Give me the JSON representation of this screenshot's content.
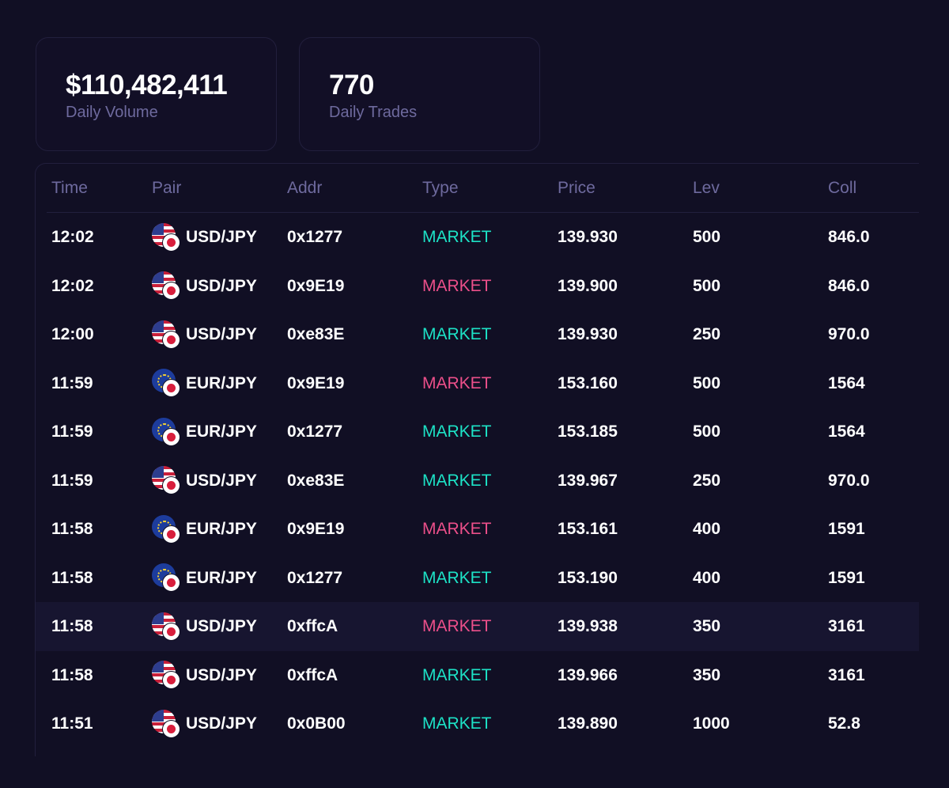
{
  "stats": {
    "volume": {
      "value": "$110,482,411",
      "label": "Daily Volume"
    },
    "trades": {
      "value": "770",
      "label": "Daily Trades"
    }
  },
  "colors": {
    "background": "#110f24",
    "buy": "#1de2c6",
    "sell": "#ec4f8a",
    "muted": "#6e6a9e"
  },
  "table": {
    "columns": [
      "Time",
      "Pair",
      "Addr",
      "Type",
      "Price",
      "Lev",
      "Coll"
    ],
    "rows": [
      {
        "time": "12:02",
        "pair": "USD/JPY",
        "base_flag": "us-flag-icon",
        "addr": "0x1277",
        "type": "MARKET",
        "side": "buy",
        "price": "139.930",
        "lev": "500",
        "coll": "846.0"
      },
      {
        "time": "12:02",
        "pair": "USD/JPY",
        "base_flag": "us-flag-icon",
        "addr": "0x9E19",
        "type": "MARKET",
        "side": "sell",
        "price": "139.900",
        "lev": "500",
        "coll": "846.0"
      },
      {
        "time": "12:00",
        "pair": "USD/JPY",
        "base_flag": "us-flag-icon",
        "addr": "0xe83E",
        "type": "MARKET",
        "side": "buy",
        "price": "139.930",
        "lev": "250",
        "coll": "970.0"
      },
      {
        "time": "11:59",
        "pair": "EUR/JPY",
        "base_flag": "eu-flag-icon",
        "addr": "0x9E19",
        "type": "MARKET",
        "side": "sell",
        "price": "153.160",
        "lev": "500",
        "coll": "1564"
      },
      {
        "time": "11:59",
        "pair": "EUR/JPY",
        "base_flag": "eu-flag-icon",
        "addr": "0x1277",
        "type": "MARKET",
        "side": "buy",
        "price": "153.185",
        "lev": "500",
        "coll": "1564"
      },
      {
        "time": "11:59",
        "pair": "USD/JPY",
        "base_flag": "us-flag-icon",
        "addr": "0xe83E",
        "type": "MARKET",
        "side": "buy",
        "price": "139.967",
        "lev": "250",
        "coll": "970.0"
      },
      {
        "time": "11:58",
        "pair": "EUR/JPY",
        "base_flag": "eu-flag-icon",
        "addr": "0x9E19",
        "type": "MARKET",
        "side": "sell",
        "price": "153.161",
        "lev": "400",
        "coll": "1591"
      },
      {
        "time": "11:58",
        "pair": "EUR/JPY",
        "base_flag": "eu-flag-icon",
        "addr": "0x1277",
        "type": "MARKET",
        "side": "buy",
        "price": "153.190",
        "lev": "400",
        "coll": "1591"
      },
      {
        "time": "11:58",
        "pair": "USD/JPY",
        "base_flag": "us-flag-icon",
        "addr": "0xffcA",
        "type": "MARKET",
        "side": "sell",
        "price": "139.938",
        "lev": "350",
        "coll": "3161",
        "highlighted": true
      },
      {
        "time": "11:58",
        "pair": "USD/JPY",
        "base_flag": "us-flag-icon",
        "addr": "0xffcA",
        "type": "MARKET",
        "side": "buy",
        "price": "139.966",
        "lev": "350",
        "coll": "3161"
      },
      {
        "time": "11:51",
        "pair": "USD/JPY",
        "base_flag": "us-flag-icon",
        "addr": "0x0B00",
        "type": "MARKET",
        "side": "buy",
        "price": "139.890",
        "lev": "1000",
        "coll": "52.8"
      }
    ]
  }
}
